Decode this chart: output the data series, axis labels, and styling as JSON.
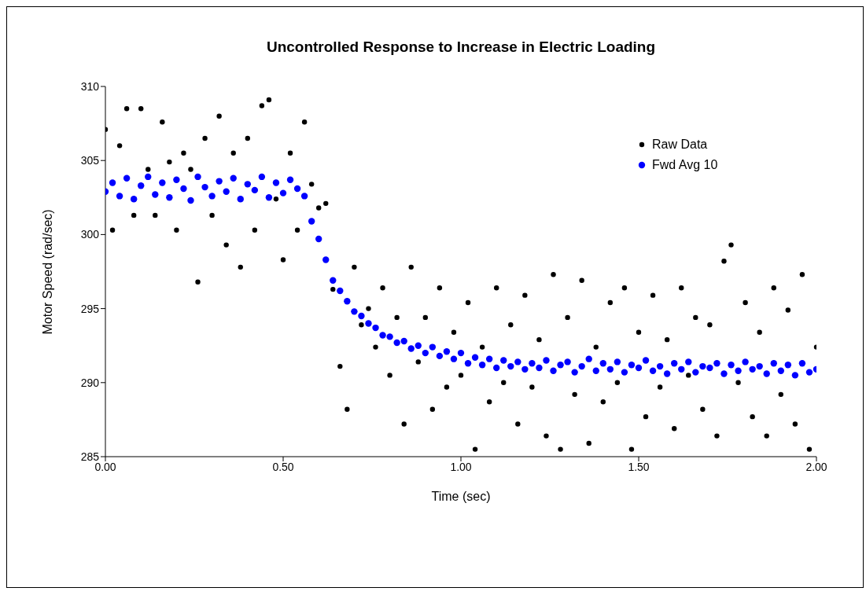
{
  "chart_data": {
    "type": "scatter",
    "title": "Uncontrolled Response to Increase in Electric Loading",
    "xlabel": "Time (sec)",
    "ylabel": "Motor Speed (rad/sec)",
    "x": [
      0,
      0.02,
      0.04,
      0.06,
      0.08,
      0.1,
      0.12,
      0.14,
      0.16,
      0.18,
      0.2,
      0.22,
      0.24,
      0.26,
      0.28,
      0.3,
      0.32,
      0.34,
      0.36,
      0.38,
      0.4,
      0.42,
      0.44,
      0.46,
      0.48,
      0.5,
      0.52,
      0.54,
      0.56,
      0.58,
      0.6,
      0.62,
      0.64,
      0.66,
      0.68,
      0.7,
      0.72,
      0.74,
      0.76,
      0.78,
      0.8,
      0.82,
      0.84,
      0.86,
      0.88,
      0.9,
      0.92,
      0.94,
      0.96,
      0.98,
      1,
      1.02,
      1.04,
      1.06,
      1.08,
      1.1,
      1.12,
      1.14,
      1.16,
      1.18,
      1.2,
      1.22,
      1.24,
      1.26,
      1.28,
      1.3,
      1.32,
      1.34,
      1.36,
      1.38,
      1.4,
      1.42,
      1.44,
      1.46,
      1.48,
      1.5,
      1.52,
      1.54,
      1.56,
      1.58,
      1.6,
      1.62,
      1.64,
      1.66,
      1.68,
      1.7,
      1.72,
      1.74,
      1.76,
      1.78,
      1.8,
      1.82,
      1.84,
      1.86,
      1.88,
      1.9,
      1.92,
      1.94,
      1.96,
      1.98,
      2
    ],
    "series": [
      {
        "name": "Raw Data",
        "color": "#000000",
        "marker": "circle",
        "values": [
          307.1,
          300.3,
          306.0,
          308.5,
          301.3,
          308.5,
          304.4,
          301.3,
          307.6,
          304.9,
          300.3,
          305.5,
          304.4,
          296.8,
          306.5,
          301.3,
          308.0,
          299.3,
          305.5,
          297.8,
          306.5,
          300.3,
          308.7,
          309.1,
          302.4,
          298.3,
          305.5,
          300.3,
          307.6,
          303.4,
          301.8,
          302.1,
          296.3,
          291.1,
          288.2,
          297.8,
          293.9,
          295.0,
          292.4,
          296.4,
          290.5,
          294.4,
          287.2,
          297.8,
          291.4,
          294.4,
          288.2,
          296.4,
          289.7,
          293.4,
          290.5,
          295.4,
          285.5,
          292.4,
          288.7,
          296.4,
          290.0,
          293.9,
          287.2,
          295.9,
          289.7,
          292.9,
          286.4,
          297.3,
          285.5,
          294.4,
          289.2,
          296.9,
          285.9,
          292.4,
          288.7,
          295.4,
          290.0,
          296.4,
          285.5,
          293.4,
          287.7,
          295.9,
          289.7,
          292.9,
          286.9,
          296.4,
          290.5,
          294.4,
          288.2,
          293.9,
          286.4,
          298.2,
          299.3,
          290.0,
          295.4,
          287.7,
          293.4,
          286.4,
          296.4,
          289.2,
          294.9,
          287.2,
          297.3,
          285.5,
          292.4
        ]
      },
      {
        "name": "Fwd Avg 10",
        "color": "#0000ff",
        "marker": "circle",
        "values": [
          302.9,
          303.5,
          302.6,
          303.8,
          302.4,
          303.3,
          303.9,
          302.7,
          303.5,
          302.5,
          303.7,
          303.1,
          302.3,
          303.9,
          303.2,
          302.6,
          303.6,
          302.9,
          303.8,
          302.4,
          303.4,
          303.0,
          303.9,
          302.5,
          303.5,
          302.8,
          303.7,
          303.1,
          302.6,
          300.9,
          299.7,
          298.3,
          296.9,
          296.2,
          295.5,
          294.8,
          294.5,
          294.0,
          293.7,
          293.2,
          293.1,
          292.7,
          292.8,
          292.3,
          292.5,
          292.0,
          292.4,
          291.8,
          292.1,
          291.6,
          292.0,
          291.3,
          291.7,
          291.2,
          291.6,
          291.0,
          291.5,
          291.1,
          291.4,
          290.9,
          291.3,
          291.0,
          291.5,
          290.8,
          291.2,
          291.4,
          290.7,
          291.1,
          291.6,
          290.8,
          291.3,
          290.9,
          291.4,
          290.7,
          291.2,
          291.0,
          291.5,
          290.8,
          291.1,
          290.6,
          291.3,
          290.9,
          291.4,
          290.7,
          291.1,
          291.0,
          291.3,
          290.6,
          291.2,
          290.8,
          291.4,
          290.9,
          291.1,
          290.6,
          291.3,
          290.8,
          291.2,
          290.5,
          291.3,
          290.7,
          290.9
        ]
      }
    ],
    "xlim": [
      0,
      2
    ],
    "xticks": [
      {
        "value": 0,
        "label": "0.00"
      },
      {
        "value": 0.5,
        "label": "0.50"
      },
      {
        "value": 1,
        "label": "1.00"
      },
      {
        "value": 1.5,
        "label": "1.50"
      },
      {
        "value": 2,
        "label": "2.00"
      }
    ],
    "ylim": [
      285,
      310
    ],
    "yticks": [
      285,
      290,
      295,
      300,
      305,
      310
    ],
    "legend": "top right"
  }
}
